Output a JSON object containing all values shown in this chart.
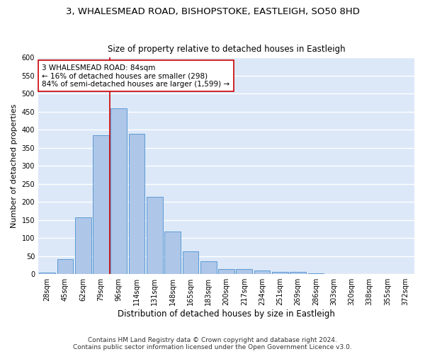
{
  "title1": "3, WHALESMEAD ROAD, BISHOPSTOKE, EASTLEIGH, SO50 8HD",
  "title2": "Size of property relative to detached houses in Eastleigh",
  "xlabel": "Distribution of detached houses by size in Eastleigh",
  "ylabel": "Number of detached properties",
  "categories": [
    "28sqm",
    "45sqm",
    "62sqm",
    "79sqm",
    "96sqm",
    "114sqm",
    "131sqm",
    "148sqm",
    "165sqm",
    "183sqm",
    "200sqm",
    "217sqm",
    "234sqm",
    "251sqm",
    "269sqm",
    "286sqm",
    "303sqm",
    "320sqm",
    "338sqm",
    "355sqm",
    "372sqm"
  ],
  "values": [
    5,
    42,
    158,
    385,
    460,
    388,
    215,
    118,
    63,
    35,
    15,
    15,
    10,
    6,
    7,
    2,
    0,
    0,
    0,
    0,
    0
  ],
  "bar_color": "#aec6e8",
  "bar_edge_color": "#5b9bd5",
  "vline_color": "#cc0000",
  "vline_x": 3.5,
  "annotation_text": "3 WHALESMEAD ROAD: 84sqm\n← 16% of detached houses are smaller (298)\n84% of semi-detached houses are larger (1,599) →",
  "annotation_box_color": "#ffffff",
  "annotation_box_edge": "#cc0000",
  "background_color": "#dce8f8",
  "grid_color": "#ffffff",
  "ylim": [
    0,
    600
  ],
  "yticks": [
    0,
    50,
    100,
    150,
    200,
    250,
    300,
    350,
    400,
    450,
    500,
    550,
    600
  ],
  "footnote": "Contains HM Land Registry data © Crown copyright and database right 2024.\nContains public sector information licensed under the Open Government Licence v3.0.",
  "title1_fontsize": 9.5,
  "title2_fontsize": 8.5,
  "xlabel_fontsize": 8.5,
  "ylabel_fontsize": 8,
  "tick_fontsize": 7,
  "annotation_fontsize": 7.5,
  "footnote_fontsize": 6.5
}
